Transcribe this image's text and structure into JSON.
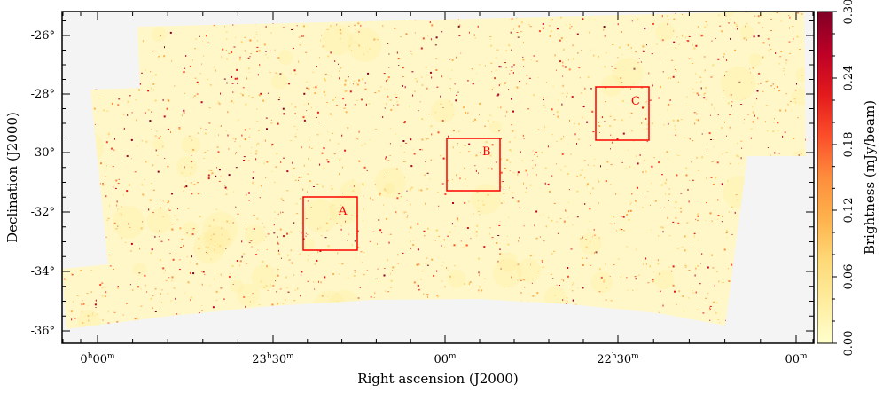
{
  "chart_data": {
    "type": "heatmap",
    "title": "",
    "xlabel": "Right ascension (J2000)",
    "ylabel": "Declination (J2000)",
    "colorbar_label": "Brightness (mJy/beam)",
    "x_ticks": [
      {
        "h": "0",
        "m": "00"
      },
      {
        "h": "23",
        "m": "30"
      },
      {
        "h": "",
        "m": "00"
      },
      {
        "h": "22",
        "m": "30"
      },
      {
        "h": "",
        "m": "00"
      }
    ],
    "y_ticks": [
      "-26°",
      "-28°",
      "-30°",
      "-32°",
      "-34°",
      "-36°"
    ],
    "y_tick_values": [
      -26,
      -28,
      -30,
      -32,
      -34,
      -36
    ],
    "ylim": [
      -36.4,
      -25.1
    ],
    "colorbar": {
      "ticks": [
        "0.00",
        "0.06",
        "0.12",
        "0.18",
        "0.24",
        "0.30"
      ],
      "range": [
        0.0,
        0.3
      ],
      "colormap": [
        "#ffffcc",
        "#ffeda0",
        "#fed976",
        "#feb24c",
        "#fd8d3c",
        "#fc4e2a",
        "#e31a1c",
        "#bd0026",
        "#800026"
      ]
    },
    "regions": [
      {
        "label": "A",
        "dec_top": -31.45,
        "dec_bottom": -33.25
      },
      {
        "label": "B",
        "dec_top": -29.45,
        "dec_bottom": -31.25
      },
      {
        "label": "C",
        "dec_top": -27.8,
        "dec_bottom": -29.6
      }
    ],
    "colors": {
      "background": "#f4f4f4",
      "map_base": "#fff7c8",
      "region_box": "#ff0000"
    }
  }
}
